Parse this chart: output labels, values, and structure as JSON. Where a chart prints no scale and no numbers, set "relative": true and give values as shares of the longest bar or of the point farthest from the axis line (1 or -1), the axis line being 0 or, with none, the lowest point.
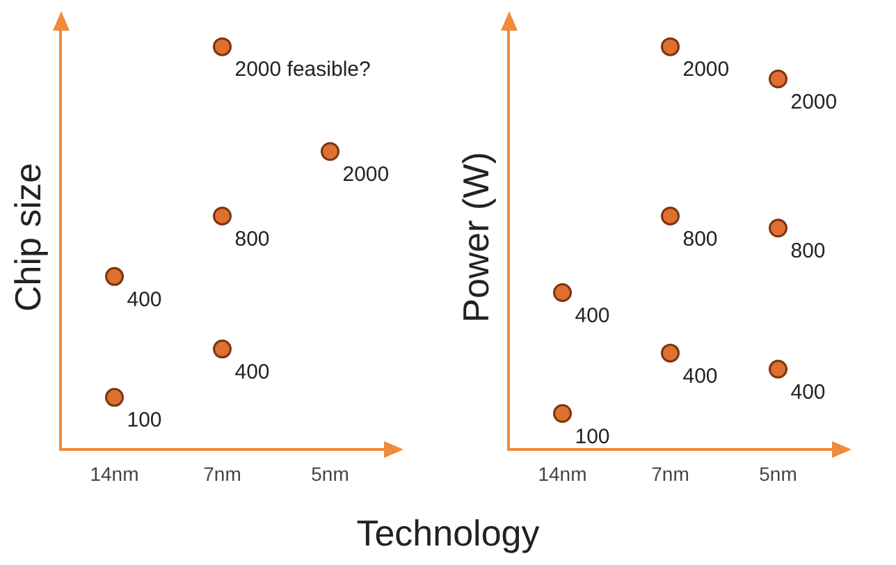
{
  "chart_data": [
    {
      "type": "scatter",
      "relative": true,
      "ylabel": "Chip size",
      "xlabel": "Technology",
      "categories": [
        "14nm",
        "7nm",
        "5nm"
      ],
      "marker": "circle",
      "grid": false,
      "legend": false,
      "series": [
        {
          "color": "#e07030",
          "x": [
            "14nm",
            "14nm",
            "7nm",
            "7nm",
            "7nm",
            "5nm"
          ],
          "values": [
            0.13,
            0.43,
            0.25,
            0.58,
            1,
            0.74
          ]
        }
      ],
      "annotations": [
        {
          "text": "100",
          "x": "14nm",
          "y": 0.13
        },
        {
          "text": "400",
          "x": "14nm",
          "y": 0.43
        },
        {
          "text": "400",
          "x": "7nm",
          "y": 0.25
        },
        {
          "text": "800",
          "x": "7nm",
          "y": 0.58
        },
        {
          "text": "2000 feasible?",
          "x": "7nm",
          "y": 1
        },
        {
          "text": "2000",
          "x": "5nm",
          "y": 0.74
        }
      ]
    },
    {
      "type": "scatter",
      "relative": true,
      "ylabel": "Power (W)",
      "categories": [
        "14nm",
        "7nm",
        "5nm"
      ],
      "marker": "circle",
      "grid": false,
      "legend": false,
      "series": [
        {
          "color": "#e07030",
          "x": [
            "14nm",
            "14nm",
            "7nm",
            "7nm",
            "7nm",
            "5nm",
            "5nm",
            "5nm"
          ],
          "values": [
            0.09,
            0.39,
            0.24,
            0.58,
            1,
            0.2,
            0.55,
            0.92
          ]
        }
      ],
      "annotations": [
        {
          "text": "100",
          "x": "14nm",
          "y": 0.09
        },
        {
          "text": "400",
          "x": "14nm",
          "y": 0.39
        },
        {
          "text": "400",
          "x": "7nm",
          "y": 0.24
        },
        {
          "text": "800",
          "x": "7nm",
          "y": 0.58
        },
        {
          "text": "2000",
          "x": "7nm",
          "y": 1
        },
        {
          "text": "400",
          "x": "5nm",
          "y": 0.2
        },
        {
          "text": "800",
          "x": "5nm",
          "y": 0.55
        },
        {
          "text": "2000",
          "x": "5nm",
          "y": 0.92
        }
      ]
    }
  ]
}
